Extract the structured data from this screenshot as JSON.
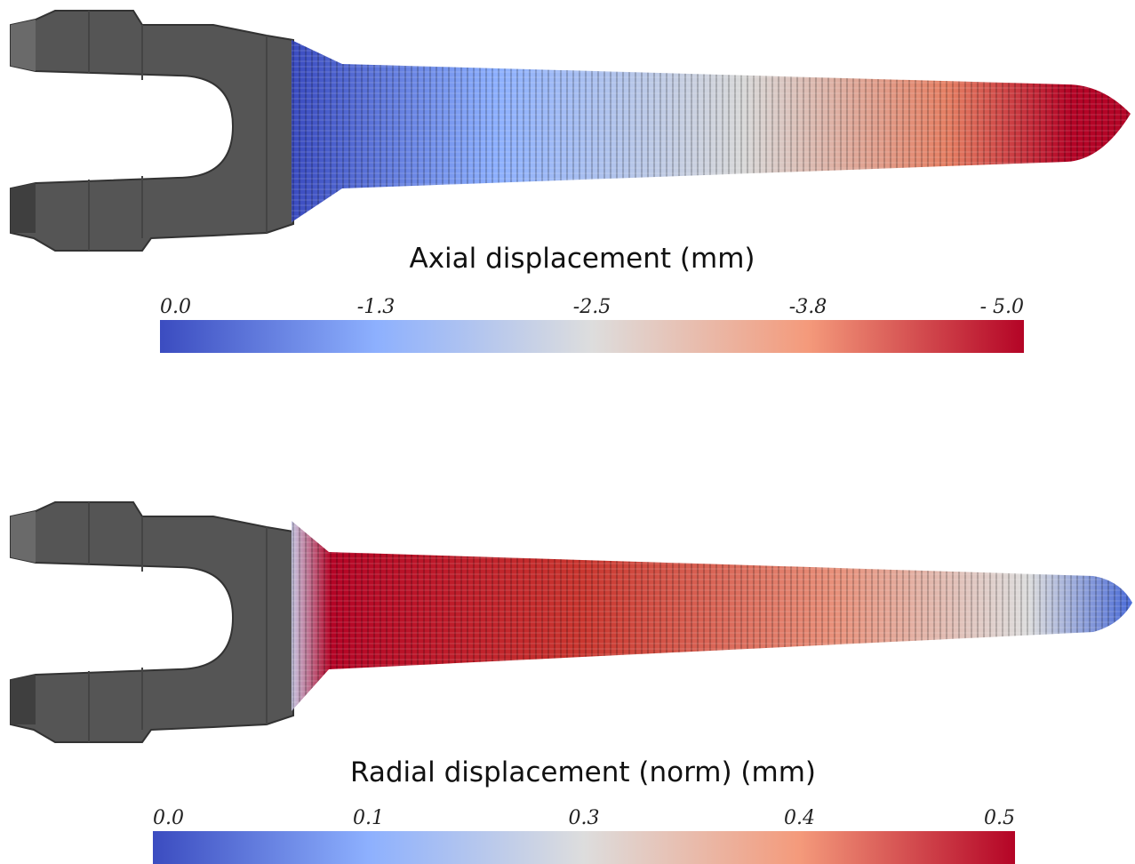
{
  "panels": [
    {
      "title": "Axial displacement (mm)",
      "colorbar": {
        "ticks": [
          "0.0",
          "-1.3",
          "-2.5",
          "-3.8",
          "- 5.0"
        ]
      }
    },
    {
      "title": "Radial displacement (norm) (mm)",
      "colorbar": {
        "ticks": [
          "0.0",
          "0.1",
          "0.3",
          "0.4",
          "0.5"
        ]
      }
    }
  ]
}
